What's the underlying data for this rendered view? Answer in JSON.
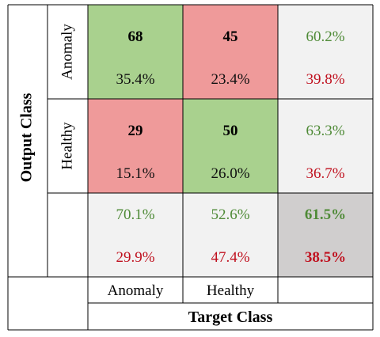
{
  "chart_data": {
    "type": "heatmap",
    "title": "",
    "xlabel": "Target Class",
    "ylabel": "Output Class",
    "x_categories": [
      "Anomaly",
      "Healthy"
    ],
    "y_categories": [
      "Anomaly",
      "Healthy"
    ],
    "cells": [
      [
        {
          "count": "68",
          "percent": "35.4%"
        },
        {
          "count": "45",
          "percent": "23.4%"
        }
      ],
      [
        {
          "count": "29",
          "percent": "15.1%"
        },
        {
          "count": "50",
          "percent": "26.0%"
        }
      ]
    ],
    "row_summary": [
      {
        "correct": "60.2%",
        "error": "39.8%"
      },
      {
        "correct": "63.3%",
        "error": "36.7%"
      }
    ],
    "col_summary": [
      {
        "correct": "70.1%",
        "error": "29.9%"
      },
      {
        "correct": "52.6%",
        "error": "47.4%"
      }
    ],
    "overall": {
      "correct": "61.5%",
      "error": "38.5%"
    }
  },
  "colors": {
    "correct_cell": "#a9d18e",
    "error_cell": "#ef9a9a",
    "summary_cell": "#f2f2f2",
    "overall_cell": "#d0cece",
    "correct_text": "#4e8a36",
    "error_text": "#c0111f",
    "border": "#000000"
  }
}
